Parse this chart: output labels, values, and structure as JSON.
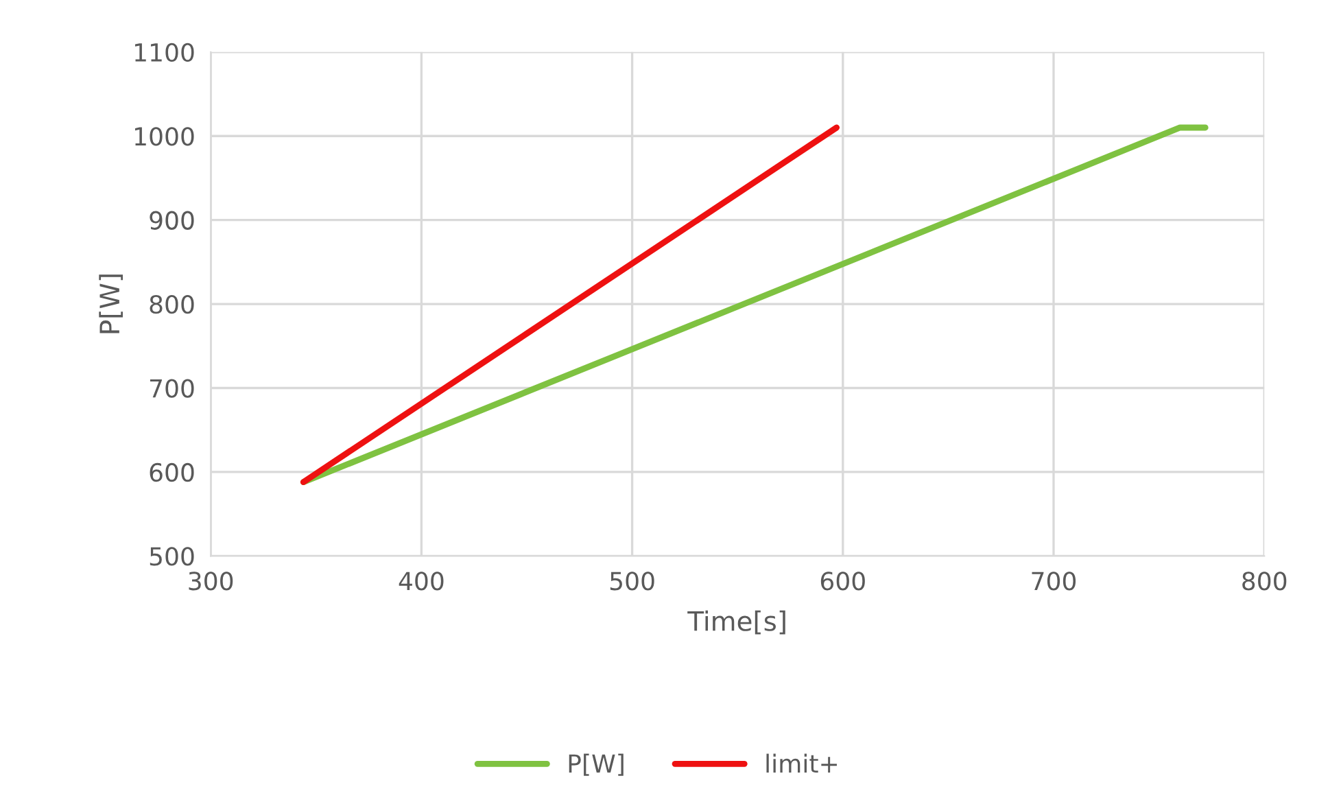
{
  "chart_data": {
    "type": "line",
    "xlabel": "Time[s]",
    "ylabel": "P[W]",
    "xlim": [
      300,
      800
    ],
    "xticks": [
      300,
      400,
      500,
      600,
      700,
      800
    ],
    "ylim": [
      500,
      1100
    ],
    "yticks": [
      500,
      600,
      700,
      800,
      900,
      1000,
      1100
    ],
    "grid": true,
    "legend": "bottom",
    "marker": "none",
    "line_style": "solid",
    "series": [
      {
        "name": "P[W]",
        "color": "#7fc241",
        "x": [
          344,
          760,
          772
        ],
        "values": [
          588,
          1010,
          1010
        ]
      },
      {
        "name": "limit+",
        "color": "#ee1111",
        "x": [
          344,
          597
        ],
        "values": [
          588,
          1010
        ]
      }
    ]
  }
}
